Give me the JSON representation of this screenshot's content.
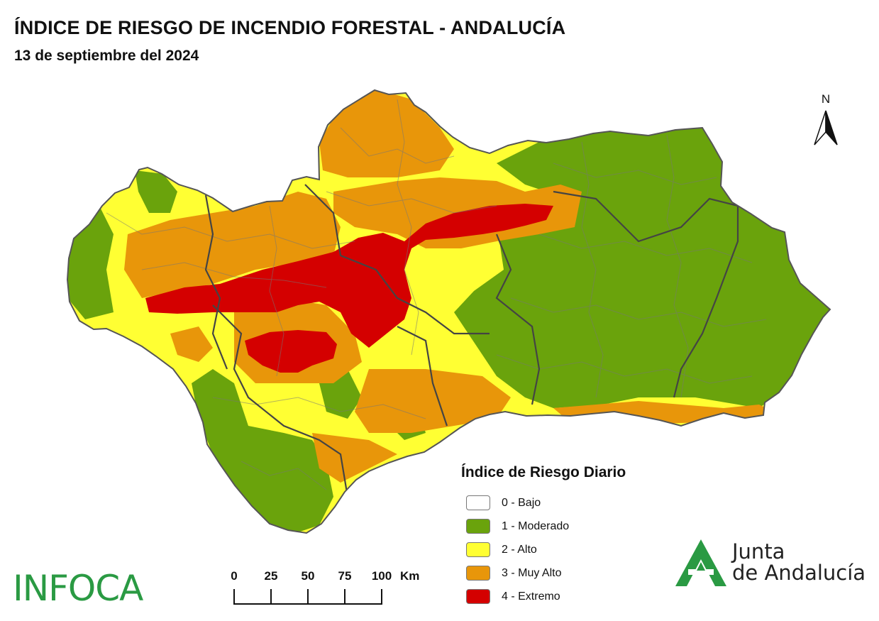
{
  "header": {
    "title": "ÍNDICE DE RIESGO DE INCENDIO FORESTAL - ANDALUCÍA",
    "date": "13 de septiembre del 2024"
  },
  "north_arrow": {
    "label": "N"
  },
  "legend": {
    "title": "Índice de Riesgo Diario",
    "items": [
      {
        "label": "0 - Bajo",
        "color": "#ffffff"
      },
      {
        "label": "1 - Moderado",
        "color": "#6aa30c"
      },
      {
        "label": "2 - Alto",
        "color": "#ffff33"
      },
      {
        "label": "3 - Muy Alto",
        "color": "#e8960a"
      },
      {
        "label": "4 - Extremo",
        "color": "#d40000"
      }
    ]
  },
  "scale_bar": {
    "ticks": [
      "0",
      "25",
      "50",
      "75",
      "100"
    ],
    "unit": "Km"
  },
  "logos": {
    "infoca": "INFOCA",
    "junta_line1": "Junta",
    "junta_line2": "de Andalucía"
  },
  "colors": {
    "border": "#555555",
    "infoca_green": "#2a9a43",
    "junta_green": "#2a9a43"
  }
}
